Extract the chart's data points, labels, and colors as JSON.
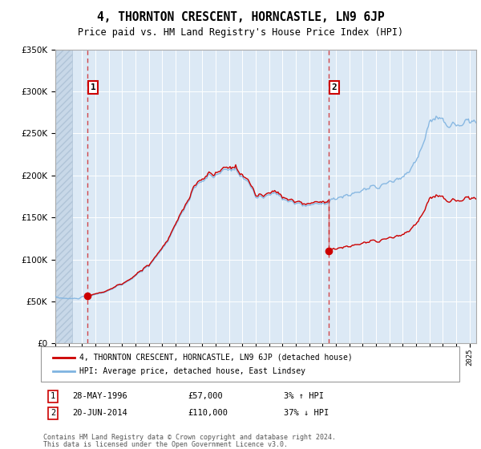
{
  "title": "4, THORNTON CRESCENT, HORNCASTLE, LN9 6JP",
  "subtitle": "Price paid vs. HM Land Registry's House Price Index (HPI)",
  "ylim": [
    0,
    350000
  ],
  "xlim_start": 1994.0,
  "xlim_end": 2025.5,
  "yticks": [
    0,
    50000,
    100000,
    150000,
    200000,
    250000,
    300000,
    350000
  ],
  "background_color": "#ffffff",
  "plot_bg_color": "#dce9f5",
  "grid_color": "#ffffff",
  "sale1_price": 57000,
  "sale1_year": 1996.41,
  "sale2_price": 110000,
  "sale2_year": 2014.46,
  "red_line_color": "#cc0000",
  "blue_line_color": "#7fb3e0",
  "legend1_text": "4, THORNTON CRESCENT, HORNCASTLE, LN9 6JP (detached house)",
  "legend2_text": "HPI: Average price, detached house, East Lindsey",
  "footer1": "Contains HM Land Registry data © Crown copyright and database right 2024.",
  "footer2": "This data is licensed under the Open Government Licence v3.0."
}
